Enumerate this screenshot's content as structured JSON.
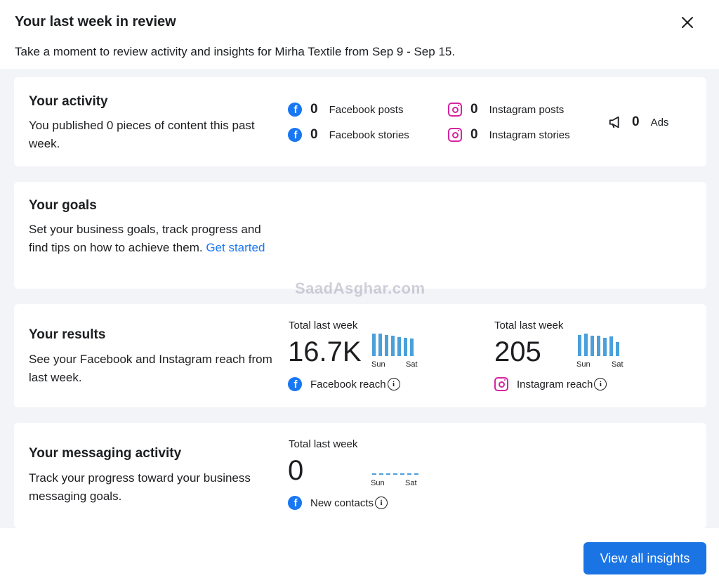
{
  "dialog": {
    "title": "Your last week in review",
    "subtitle": "Take a moment to review activity and insights for Mirha Textile from Sep 9 - Sep 15."
  },
  "activity": {
    "title": "Your activity",
    "description": "You published 0 pieces of content this past week.",
    "metrics": [
      {
        "icon": "facebook-icon",
        "value": "0",
        "label": "Facebook posts"
      },
      {
        "icon": "facebook-icon",
        "value": "0",
        "label": "Facebook stories"
      },
      {
        "icon": "instagram-icon",
        "value": "0",
        "label": "Instagram posts"
      },
      {
        "icon": "instagram-icon",
        "value": "0",
        "label": "Instagram stories"
      },
      {
        "icon": "megaphone-icon",
        "value": "0",
        "label": "Ads"
      }
    ]
  },
  "goals": {
    "title": "Your goals",
    "description": "Set your business goals, track progress and find tips on how to achieve them.",
    "link": "Get started"
  },
  "results": {
    "title": "Your results",
    "description": "See your Facebook and Instagram reach from last week.",
    "facebook": {
      "label": "Total last week",
      "value": "16.7K",
      "reach_label": "Facebook reach",
      "bars": [
        1.0,
        1.0,
        0.95,
        0.92,
        0.85,
        0.8,
        0.78
      ],
      "tick_start": "Sun",
      "tick_end": "Sat"
    },
    "instagram": {
      "label": "Total last week",
      "value": "205",
      "reach_label": "Instagram reach",
      "bars": [
        0.95,
        1.0,
        0.92,
        0.9,
        0.82,
        0.88,
        0.62
      ],
      "tick_start": "Sun",
      "tick_end": "Sat"
    }
  },
  "messaging": {
    "title": "Your messaging activity",
    "description": "Track your progress toward your business messaging goals.",
    "label": "Total last week",
    "value": "0",
    "contacts_label": "New contacts",
    "tick_start": "Sun",
    "tick_end": "Sat"
  },
  "watermark": "SaadAsghar.com",
  "footer": {
    "button": "View all insights"
  },
  "colors": {
    "accent": "#1877f2",
    "button": "#1b74e4",
    "instagram": "#d6249f",
    "bars": "#4b9fdb",
    "panel_bg": "#f3f4f8"
  }
}
